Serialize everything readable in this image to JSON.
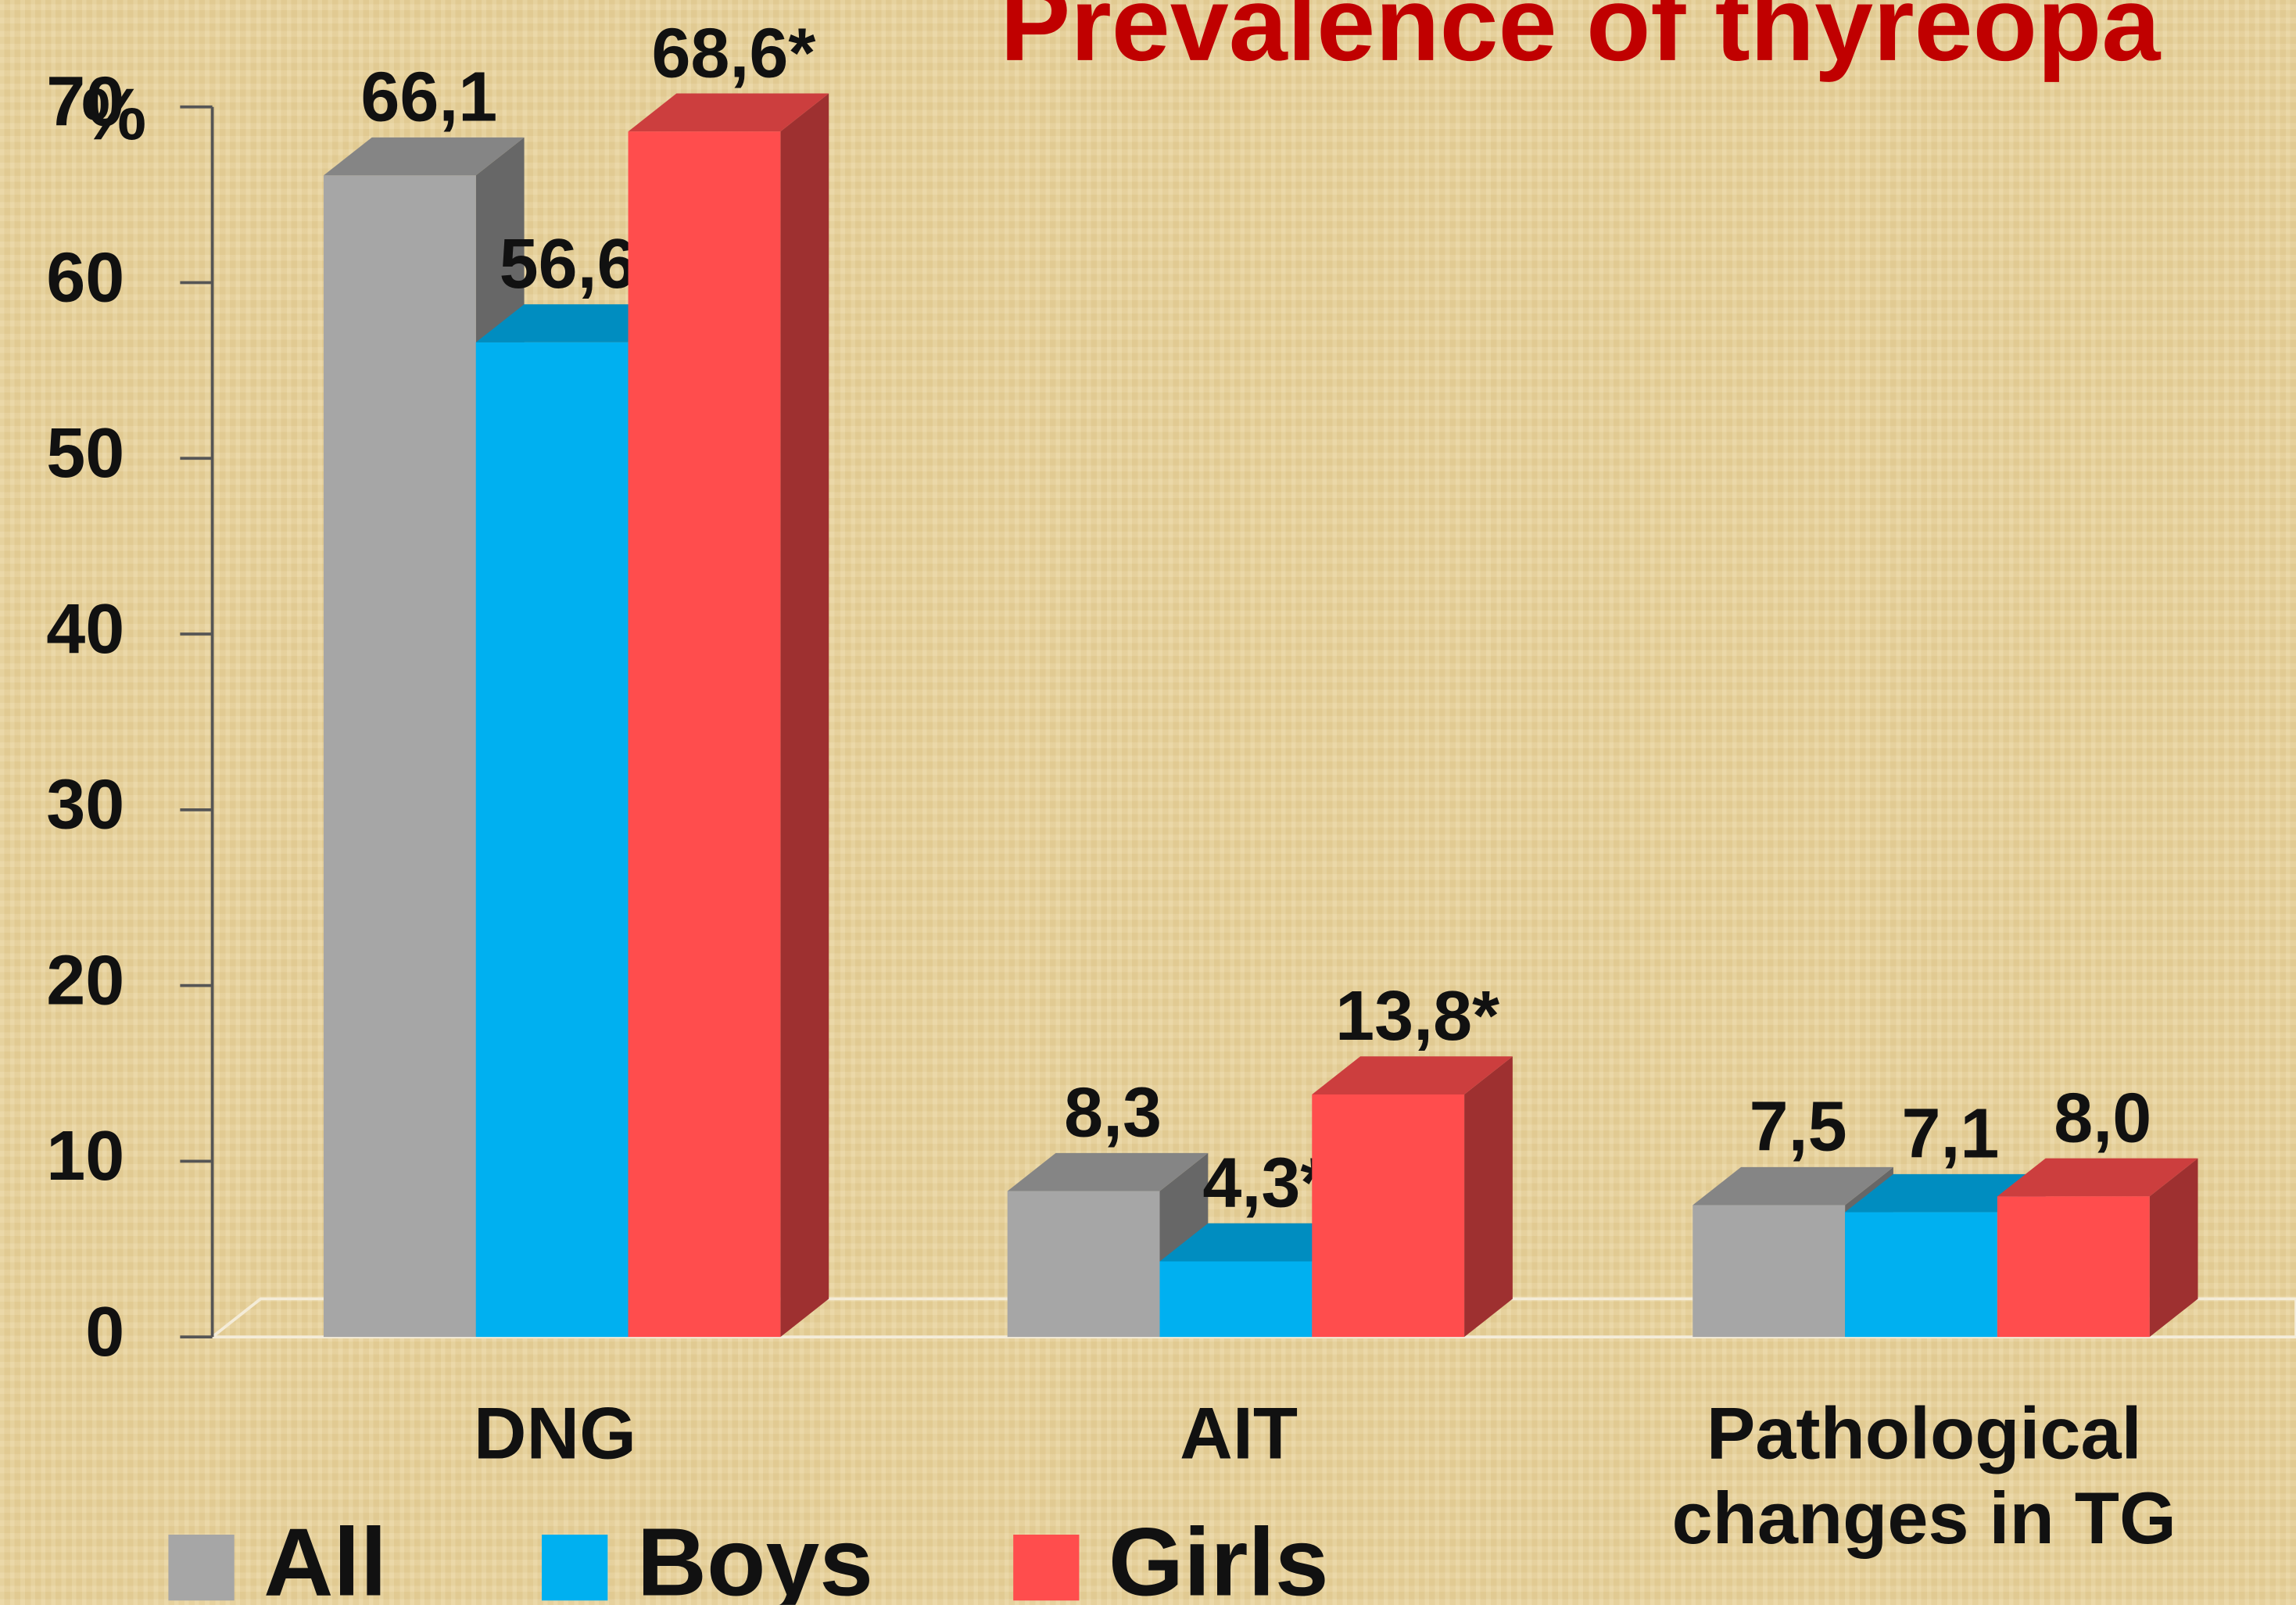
{
  "chart_data": {
    "type": "bar3d",
    "title": "Prevalence of thyreopa",
    "y_label": "%",
    "categories": [
      "DNG",
      "AIT",
      "Pathological changes in TG"
    ],
    "series": [
      {
        "name": "All",
        "color": "#a6a6a6",
        "values": [
          66.1,
          8.3,
          7.5
        ],
        "value_labels": [
          "66,1",
          "8,3",
          "7,5"
        ]
      },
      {
        "name": "Boys",
        "color": "#00b0f0",
        "values": [
          56.6,
          4.3,
          7.1
        ],
        "value_labels": [
          "56,6*",
          "4,3*",
          "7,1"
        ]
      },
      {
        "name": "Girls",
        "color": "#ff4d4d",
        "values": [
          68.6,
          13.8,
          8.0
        ],
        "value_labels": [
          "68,6*",
          "13,8*",
          "8,0"
        ]
      }
    ],
    "ylim": [
      0,
      70
    ],
    "yticks": [
      0,
      10,
      20,
      30,
      40,
      50,
      60,
      70
    ],
    "legend": "bottom-left"
  }
}
